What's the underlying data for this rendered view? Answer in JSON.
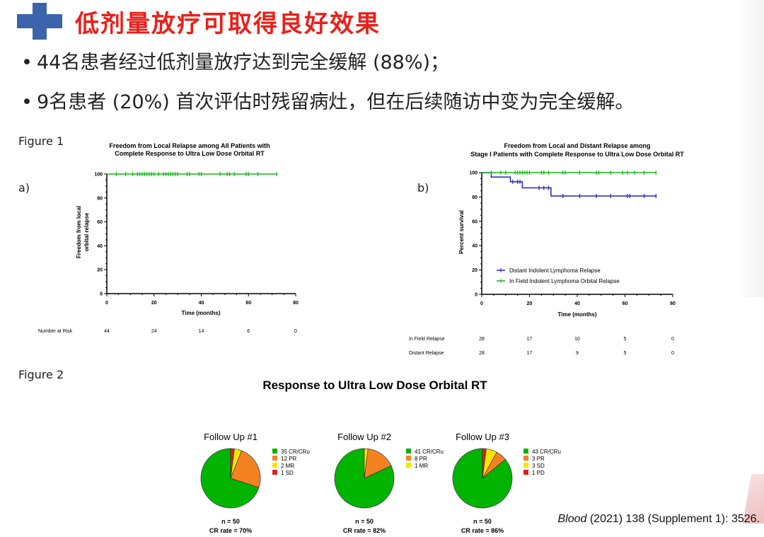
{
  "slide": {
    "title": "低剂量放疗可取得良好效果",
    "bullets": [
      {
        "dot": "•",
        "text": "44名患者经过低剂量放疗达到完全缓解 (88%)；"
      },
      {
        "dot": "•",
        "text": "9名患者 (20%) 首次评估时残留病灶，但在后续随访中变为完全缓解。"
      }
    ],
    "figure1_label": "Figure 1",
    "figure2_label": "Figure 2",
    "panel_a": "a)",
    "panel_b": "b)",
    "citation_journal": "Blood",
    "citation_rest": " (2021) 138 (Supplement 1): 3526."
  },
  "colors": {
    "title": "#e8211b",
    "green": "#19b219",
    "blue": "#2020c8",
    "orange": "#f58220",
    "yellow": "#ffe400",
    "red": "#e02020",
    "pie_green": "#00b400",
    "accent_blue": "#3b64ad"
  },
  "chart_data": [
    {
      "type": "line",
      "title_line1": "Freedom from Local Relapse among All Patients with",
      "title_line2": "Complete Response to Ultra Low Dose Orbital RT",
      "xlabel": "Time (months)",
      "ylabel_line1": "Freedom from local",
      "ylabel_line2": "orbital relapse",
      "xlim": [
        0,
        80
      ],
      "ylim": [
        0,
        100
      ],
      "xticks": [
        "0",
        "20",
        "40",
        "60",
        "80"
      ],
      "yticks": [
        "0",
        "20",
        "40",
        "60",
        "80",
        "100"
      ],
      "series": [
        {
          "steps": [
            [
              0,
              100
            ],
            [
              72,
              100
            ]
          ],
          "censor": [
            4,
            8,
            11,
            13,
            14,
            15,
            16,
            17,
            18,
            19,
            20,
            22,
            24,
            25,
            26,
            27,
            28,
            29,
            30,
            34,
            35,
            39,
            40,
            48,
            51,
            52,
            54,
            59,
            60,
            64,
            72
          ]
        }
      ],
      "risk_label": "Number at Risk",
      "risk_values": [
        "44",
        "24",
        "14",
        "6",
        "0"
      ]
    },
    {
      "type": "line",
      "title_line1": "Freedom from Local and Distant Relapse among",
      "title_line2": "Stage I Patients with Complete Response to Ultra Low Dose Orbital RT",
      "xlabel": "Time (months)",
      "ylabel": "Percent survival",
      "xlim": [
        0,
        80
      ],
      "ylim": [
        0,
        100
      ],
      "xticks": [
        "0",
        "20",
        "40",
        "60",
        "80"
      ],
      "yticks": [
        "0",
        "20",
        "40",
        "60",
        "80",
        "100"
      ],
      "legend_position": "lower-center",
      "series": [
        {
          "name": "Distant Indolent Lymphoma Relapse",
          "color": "#2020c8",
          "steps": [
            [
              0,
              100
            ],
            [
              4,
              100
            ],
            [
              4,
              96.4
            ],
            [
              12,
              96.4
            ],
            [
              12,
              92.5
            ],
            [
              17,
              92.5
            ],
            [
              17,
              87.5
            ],
            [
              29,
              87.5
            ],
            [
              29,
              80.8
            ],
            [
              73,
              80.8
            ]
          ],
          "censor": [
            13,
            15,
            16,
            24,
            26,
            28,
            34,
            41,
            48,
            54,
            61,
            62,
            68,
            73
          ]
        },
        {
          "name": "In Field Indolent Lymphoma Orbital Relapse",
          "color": "#19b219",
          "steps": [
            [
              0,
              100
            ],
            [
              73,
              100
            ]
          ],
          "censor": [
            4,
            8,
            10,
            14,
            15,
            16,
            17,
            18,
            19,
            20,
            25,
            26,
            28,
            34,
            35,
            41,
            48,
            49,
            54,
            59,
            61,
            64,
            68,
            73
          ]
        }
      ],
      "risk_rows": [
        {
          "label": "In Field Relapse",
          "values": [
            "28",
            "17",
            "10",
            "5",
            "0"
          ]
        },
        {
          "label": "Distant Relapse",
          "values": [
            "28",
            "17",
            "9",
            "5",
            "0"
          ]
        }
      ]
    },
    {
      "type": "pie",
      "suptitle": "Response to Ultra Low Dose Orbital RT",
      "pies": [
        {
          "title": "Follow Up #1",
          "n": "n = 50",
          "cr": "CR rate = 70%",
          "slices": [
            {
              "label": "35 CR/CRu",
              "value": 35,
              "color": "#00b400"
            },
            {
              "label": "12 PR",
              "value": 12,
              "color": "#f58220"
            },
            {
              "label": "2 MR",
              "value": 2,
              "color": "#ffe400"
            },
            {
              "label": "1 SD",
              "value": 1,
              "color": "#e02020"
            }
          ]
        },
        {
          "title": "Follow Up #2",
          "n": "n = 50",
          "cr": "CR rate = 82%",
          "slices": [
            {
              "label": "41 CR/CRu",
              "value": 41,
              "color": "#00b400"
            },
            {
              "label": "8 PR",
              "value": 8,
              "color": "#f58220"
            },
            {
              "label": "1 MR",
              "value": 1,
              "color": "#ffe400"
            }
          ]
        },
        {
          "title": "Follow Up #3",
          "n": "n = 50",
          "cr": "CR rate = 86%",
          "slices": [
            {
              "label": "43 CR/CRu",
              "value": 43,
              "color": "#00b400"
            },
            {
              "label": "3 PR",
              "value": 3,
              "color": "#f58220"
            },
            {
              "label": "3 SD",
              "value": 3,
              "color": "#ffe400"
            },
            {
              "label": "1 PD",
              "value": 1,
              "color": "#e02020"
            }
          ]
        }
      ]
    }
  ]
}
